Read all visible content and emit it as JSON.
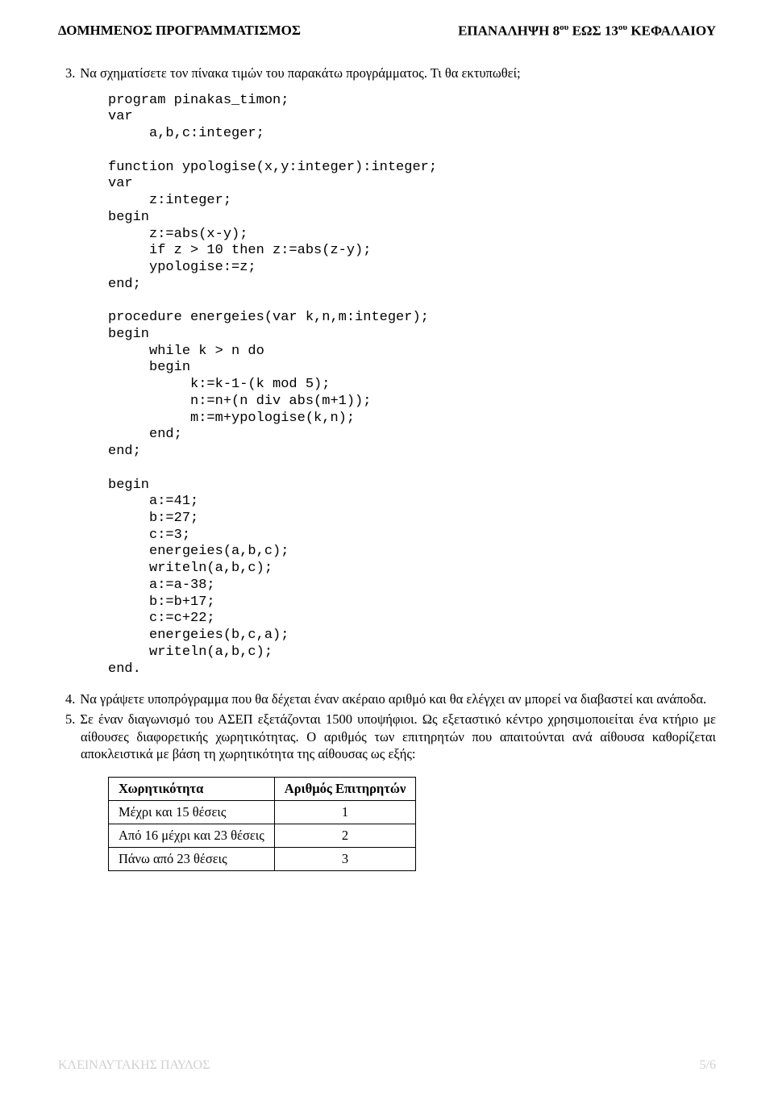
{
  "header": {
    "left": "ΔΟΜΗΜΕΝΟΣ ΠΡΟΓΡΑΜΜΑΤΙΣΜΟΣ",
    "right_prefix": "ΕΠΑΝΑΛΗΨΗ 8",
    "right_sup1": "ου",
    "right_mid": " ΕΩΣ 13",
    "right_sup2": "ου",
    "right_suffix": "  ΚΕΦΑΛΑΙΟΥ"
  },
  "q3": {
    "num": "3.",
    "text": "Να σχηματίσετε τον πίνακα τιμών του παρακάτω προγράμματος. Τι θα εκτυπωθεί;"
  },
  "code": "program pinakas_timon;\nvar\n     a,b,c:integer;\n\nfunction ypologise(x,y:integer):integer;\nvar\n     z:integer;\nbegin\n     z:=abs(x-y);\n     if z > 10 then z:=abs(z-y);\n     ypologise:=z;\nend;\n\nprocedure energeies(var k,n,m:integer);\nbegin\n     while k > n do\n     begin\n          k:=k-1-(k mod 5);\n          n:=n+(n div abs(m+1));\n          m:=m+ypologise(k,n);\n     end;\nend;\n\nbegin\n     a:=41;\n     b:=27;\n     c:=3;\n     energeies(a,b,c);\n     writeln(a,b,c);\n     a:=a-38;\n     b:=b+17;\n     c:=c+22;\n     energeies(b,c,a);\n     writeln(a,b,c);\nend.",
  "q4": {
    "num": "4.",
    "text": "Να γράψετε υποπρόγραμμα που θα δέχεται έναν ακέραιο αριθμό και θα ελέγχει αν μπορεί να διαβαστεί και ανάποδα."
  },
  "q5": {
    "num": "5.",
    "text": "Σε έναν διαγωνισμό του ΑΣΕΠ εξετάζονται 1500 υποψήφιοι. Ως εξεταστικό κέντρο χρησιμοποιείται ένα κτήριο με αίθουσες διαφορετικής χωρητικότητας. Ο αριθμός των επιτηρητών που απαιτούνται ανά αίθουσα καθορίζεται αποκλειστικά με βάση τη χωρητικότητα της αίθουσας ως εξής:"
  },
  "table": {
    "head1": "Χωρητικότητα",
    "head2": "Αριθμός Επιτηρητών",
    "rows": [
      {
        "c": "Μέχρι και 15 θέσεις",
        "v": "1"
      },
      {
        "c": "Από 16 μέχρι και 23 θέσεις",
        "v": "2"
      },
      {
        "c": "Πάνω από 23 θέσεις",
        "v": "3"
      }
    ]
  },
  "footer": {
    "author": "ΚΛΕΙΝΑΥΤΑΚΗΣ ΠΑΥΛΟΣ",
    "page": "5/6"
  }
}
